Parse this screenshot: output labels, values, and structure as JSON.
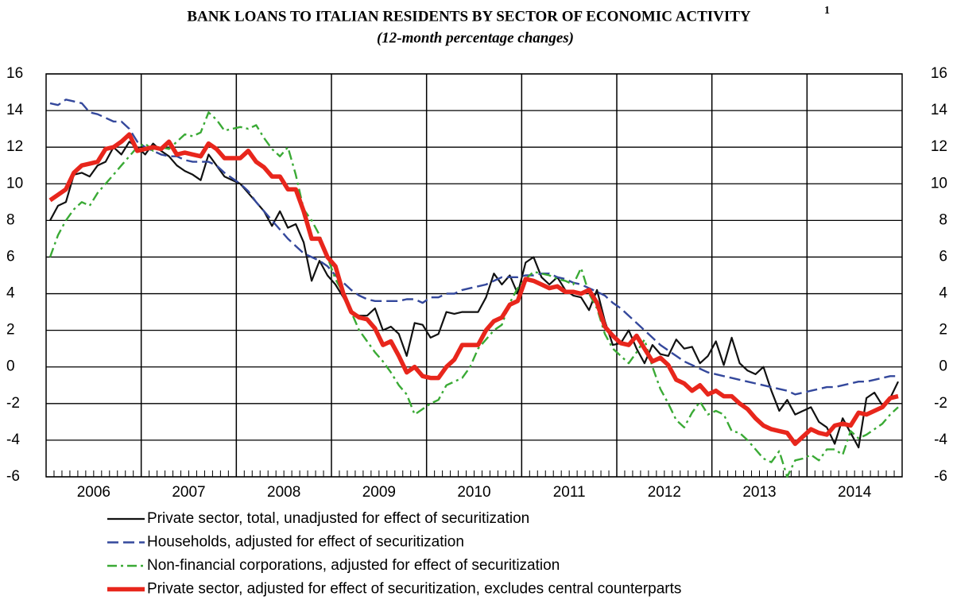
{
  "chart_data": {
    "type": "line",
    "title": "BANK LOANS TO ITALIAN RESIDENTS BY SECTOR OF ECONOMIC ACTIVITY",
    "title_note": "1",
    "subtitle": "(12-month percentage changes)",
    "categories": [
      "2006",
      null,
      null,
      null,
      null,
      null,
      null,
      null,
      null,
      null,
      null,
      null,
      "2007",
      null,
      null,
      null,
      null,
      null,
      null,
      null,
      null,
      null,
      null,
      null,
      "2008",
      null,
      null,
      null,
      null,
      null,
      null,
      null,
      null,
      null,
      null,
      null,
      "2009",
      null,
      null,
      null,
      null,
      null,
      null,
      null,
      null,
      null,
      null,
      null,
      "2010",
      null,
      null,
      null,
      null,
      null,
      null,
      null,
      null,
      null,
      null,
      null,
      "2011",
      null,
      null,
      null,
      null,
      null,
      null,
      null,
      null,
      null,
      null,
      null,
      "2012",
      null,
      null,
      null,
      null,
      null,
      null,
      null,
      null,
      null,
      null,
      null,
      "2013",
      null,
      null,
      null,
      null,
      null,
      null,
      null,
      null,
      null,
      null,
      null,
      "2014",
      null,
      null,
      null,
      null,
      null,
      null,
      null,
      null,
      null,
      null,
      null
    ],
    "ylim": [
      -6,
      16
    ],
    "yticks": [
      -6,
      -4,
      -2,
      0,
      2,
      4,
      6,
      8,
      10,
      12,
      14,
      16
    ],
    "y2lim": [
      -6,
      16
    ],
    "y2ticks": [
      -6,
      -4,
      -2,
      0,
      2,
      4,
      6,
      8,
      10,
      12,
      14,
      16
    ],
    "grid": true,
    "series": [
      {
        "name": "Private sector, total, unadjusted for effect of securitization",
        "color": "#111111",
        "style": "solid",
        "values": [
          8.0,
          8.8,
          9.0,
          10.5,
          10.6,
          10.4,
          11.0,
          11.2,
          12.0,
          11.6,
          12.3,
          12.0,
          11.6,
          12.2,
          11.8,
          11.5,
          11.0,
          10.7,
          10.5,
          10.2,
          11.6,
          11.0,
          10.4,
          10.2,
          10.0,
          9.5,
          9.0,
          8.5,
          7.7,
          8.5,
          7.6,
          7.8,
          6.8,
          4.7,
          5.8,
          5.0,
          4.5,
          3.8,
          3.0,
          2.8,
          2.8,
          3.2,
          2.0,
          2.2,
          1.8,
          0.6,
          2.4,
          2.3,
          1.6,
          1.8,
          3.0,
          2.9,
          3.0,
          3.0,
          3.0,
          3.8,
          5.1,
          4.5,
          5.0,
          4.0,
          5.7,
          6.0,
          4.9,
          4.5,
          4.9,
          4.2,
          3.9,
          3.8,
          3.1,
          4.2,
          2.5,
          1.2,
          1.3,
          2.0,
          1.0,
          0.2,
          1.2,
          0.7,
          0.6,
          1.5,
          1.0,
          1.1,
          0.2,
          0.6,
          1.4,
          0.1,
          1.6,
          0.2,
          -0.2,
          -0.4,
          0.0,
          -1.3,
          -2.4,
          -1.8,
          -2.6,
          -2.4,
          -2.2,
          -3.0,
          -3.3,
          -4.2,
          -2.8,
          -3.6,
          -4.4,
          -1.7,
          -1.4,
          -2.1,
          -1.7,
          -0.8
        ]
      },
      {
        "name": "Households, adjusted for effect of securitization",
        "color": "#34489c",
        "style": "dashed",
        "values": [
          14.4,
          14.3,
          14.6,
          14.5,
          14.4,
          13.9,
          13.8,
          13.6,
          13.4,
          13.4,
          13.0,
          12.3,
          12.0,
          11.8,
          11.6,
          11.5,
          11.5,
          11.3,
          11.2,
          11.2,
          11.2,
          11.0,
          10.6,
          10.3,
          10.0,
          9.6,
          9.0,
          8.5,
          8.0,
          7.5,
          7.0,
          6.6,
          6.2,
          6.0,
          5.8,
          5.5,
          5.0,
          4.6,
          4.2,
          3.9,
          3.7,
          3.6,
          3.6,
          3.6,
          3.6,
          3.7,
          3.7,
          3.5,
          3.8,
          3.8,
          4.0,
          4.0,
          4.2,
          4.3,
          4.4,
          4.5,
          4.7,
          4.9,
          4.9,
          4.9,
          5.0,
          5.0,
          5.1,
          5.1,
          4.9,
          4.8,
          4.6,
          4.5,
          4.3,
          4.1,
          3.9,
          3.5,
          3.2,
          2.8,
          2.4,
          2.0,
          1.6,
          1.2,
          0.9,
          0.6,
          0.3,
          0.1,
          -0.1,
          -0.3,
          -0.4,
          -0.5,
          -0.6,
          -0.7,
          -0.8,
          -0.9,
          -1.0,
          -1.1,
          -1.2,
          -1.3,
          -1.5,
          -1.4,
          -1.3,
          -1.2,
          -1.1,
          -1.1,
          -1.0,
          -0.9,
          -0.8,
          -0.8,
          -0.7,
          -0.6,
          -0.5,
          -0.5
        ]
      },
      {
        "name": "Non-financial corporations, adjusted for effect of securitization",
        "color": "#3aaa35",
        "style": "dashdot",
        "values": [
          6.0,
          7.2,
          8.0,
          8.6,
          9.0,
          8.8,
          9.5,
          10.0,
          10.5,
          11.0,
          11.5,
          12.0,
          12.2,
          11.8,
          12.0,
          11.9,
          12.3,
          12.7,
          12.6,
          12.8,
          13.9,
          13.5,
          12.9,
          13.0,
          13.1,
          13.0,
          13.2,
          12.5,
          11.9,
          11.5,
          12.0,
          10.5,
          8.6,
          8.0,
          7.2,
          6.0,
          4.8,
          4.0,
          3.0,
          2.0,
          1.4,
          0.8,
          0.3,
          -0.3,
          -1.0,
          -1.5,
          -2.6,
          -2.3,
          -2.0,
          -1.8,
          -1.0,
          -0.8,
          -0.6,
          0.0,
          1.0,
          1.5,
          2.0,
          2.3,
          3.5,
          4.3,
          4.8,
          5.2,
          5.1,
          5.0,
          4.8,
          4.7,
          4.5,
          5.4,
          4.0,
          3.2,
          1.8,
          1.0,
          0.6,
          0.2,
          0.8,
          1.5,
          0.0,
          -1.2,
          -2.0,
          -2.9,
          -3.3,
          -2.5,
          -1.9,
          -2.6,
          -2.4,
          -2.6,
          -3.5,
          -3.6,
          -4.0,
          -4.5,
          -5.0,
          -5.2,
          -4.6,
          -6.0,
          -5.1,
          -5.0,
          -4.8,
          -5.1,
          -4.5,
          -4.5,
          -4.8,
          -3.5,
          -3.9,
          -3.7,
          -3.4,
          -3.1,
          -2.6,
          -2.2
        ]
      },
      {
        "name": "Private sector, adjusted for effect of securitization, excludes central counterparts",
        "color": "#e8261c",
        "style": "bold",
        "values": [
          9.1,
          9.4,
          9.7,
          10.6,
          11.0,
          11.1,
          11.2,
          11.9,
          12.0,
          12.3,
          12.7,
          11.8,
          11.9,
          12.0,
          11.9,
          12.3,
          11.6,
          11.7,
          11.6,
          11.5,
          12.2,
          11.9,
          11.4,
          11.4,
          11.4,
          11.8,
          11.2,
          10.9,
          10.4,
          10.4,
          9.7,
          9.7,
          8.5,
          7.0,
          7.0,
          6.0,
          5.5,
          4.0,
          3.0,
          2.7,
          2.6,
          2.1,
          1.2,
          1.4,
          0.6,
          -0.3,
          0.0,
          -0.5,
          -0.6,
          -0.6,
          0.0,
          0.4,
          1.2,
          1.2,
          1.2,
          2.0,
          2.5,
          2.7,
          3.4,
          3.6,
          4.8,
          4.7,
          4.5,
          4.3,
          4.4,
          4.1,
          4.1,
          4.0,
          4.2,
          3.5,
          2.2,
          1.7,
          1.3,
          1.2,
          1.7,
          1.0,
          0.3,
          0.5,
          0.1,
          -0.7,
          -0.9,
          -1.3,
          -1.0,
          -1.5,
          -1.3,
          -1.6,
          -1.6,
          -2.0,
          -2.3,
          -2.8,
          -3.2,
          -3.4,
          -3.5,
          -3.6,
          -4.2,
          -3.8,
          -3.4,
          -3.6,
          -3.7,
          -3.2,
          -3.1,
          -3.2,
          -2.5,
          -2.6,
          -2.4,
          -2.2,
          -1.7,
          -1.6
        ]
      }
    ]
  }
}
